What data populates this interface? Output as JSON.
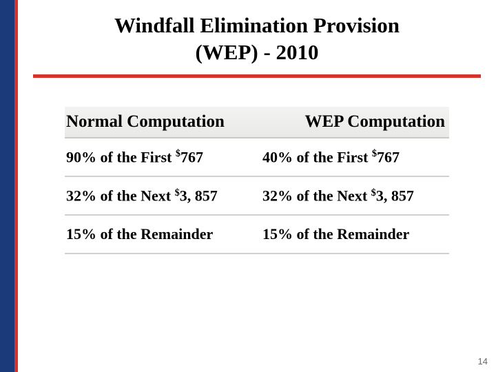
{
  "title_line1": "Windfall Elimination Provision",
  "title_line2": "(WEP) - 2010",
  "colors": {
    "sidebar": "#1a3a7a",
    "accent": "#d4342c",
    "header_grad_top": "#f3f3f2",
    "header_grad_bottom": "#e9e9e7",
    "row_border": "#d0d0cc",
    "text": "#000000",
    "page_number": "#6a6a6a",
    "background": "#ffffff"
  },
  "table": {
    "type": "table",
    "columns": [
      "Normal Computation",
      "WEP Computation"
    ],
    "header_fontsize": 25,
    "cell_fontsize": 22,
    "rows": [
      {
        "c1_pct": "90%",
        "c1_mid": " of the First ",
        "c1_amt": "767",
        "c2_pct": "40%",
        "c2_mid": " of the First ",
        "c2_amt": "767"
      },
      {
        "c1_pct": "32%",
        "c1_mid": " of the Next ",
        "c1_amt": "3, 857",
        "c2_pct": "32%",
        "c2_mid": " of the Next ",
        "c2_amt": "3, 857"
      },
      {
        "c1_pct": "15%",
        "c1_mid": " of the Remainder",
        "c1_amt": "",
        "c2_pct": "15%",
        "c2_mid": " of the Remainder",
        "c2_amt": ""
      }
    ]
  },
  "page_number": "14"
}
